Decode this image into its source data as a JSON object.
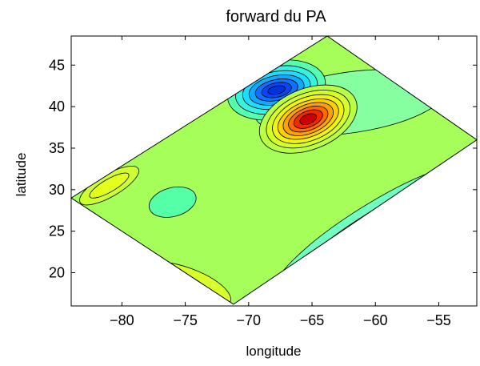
{
  "chart_data": {
    "type": "contour",
    "title": "forward du PA",
    "xlabel": "longitude",
    "ylabel": "latitude",
    "xlim": [
      -84,
      -52
    ],
    "ylim": [
      16,
      48.5
    ],
    "xticks": [
      -80,
      -75,
      -70,
      -65,
      -60,
      -55
    ],
    "yticks": [
      20,
      25,
      30,
      35,
      40,
      45
    ],
    "xtick_labels": [
      "−80",
      "−75",
      "−70",
      "−65",
      "−60",
      "−55"
    ],
    "ytick_labels": [
      "20",
      "25",
      "30",
      "35",
      "40",
      "45"
    ],
    "grid": false,
    "domain_corners": [
      [
        -84,
        29
      ],
      [
        -71.2,
        16.2
      ],
      [
        -52,
        36
      ],
      [
        -63.8,
        48.5
      ]
    ],
    "background_color": "#a6ff59",
    "features": [
      {
        "kind": "positive_max",
        "center": [
          -65.3,
          38.5
        ],
        "color": "#cc0000"
      },
      {
        "kind": "negative_min",
        "center": [
          -67.8,
          42
        ],
        "color": "#0033dd"
      },
      {
        "kind": "negative_band",
        "center": [
          -60,
          25
        ],
        "color": "#2bcfe0"
      },
      {
        "kind": "negative_patch",
        "center": [
          -76,
          28.5
        ],
        "color": "#55ffa8"
      },
      {
        "kind": "positive_patch",
        "center": [
          -81,
          30.5
        ],
        "color": "#e3ff1c"
      }
    ]
  }
}
